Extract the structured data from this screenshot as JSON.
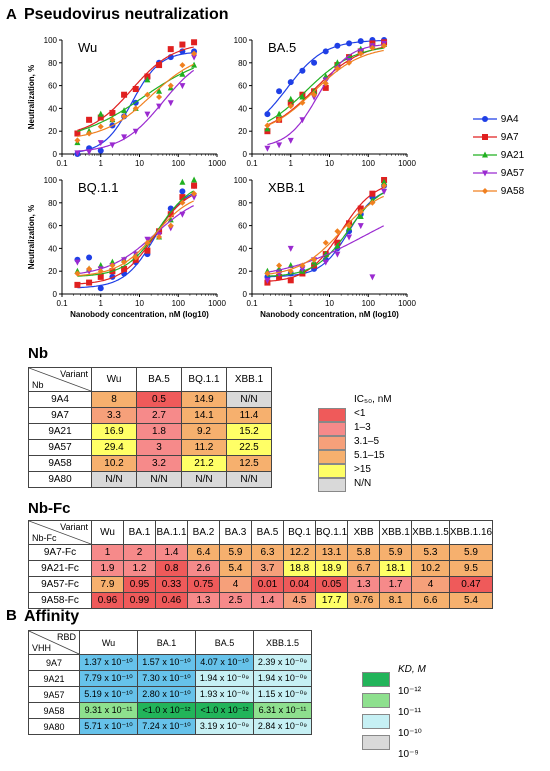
{
  "panel_a": "A",
  "panel_b": "B",
  "pseudo_title": "Pseudovirus neutralization",
  "nb_title": "Nb",
  "nbfc_title": "Nb-Fc",
  "affinity_title": "Affinity",
  "chart_data": [
    {
      "type": "scatter",
      "title": "Wu",
      "ylabel": "Neutralization, %",
      "xlabel": "",
      "xscale": "log",
      "xlim": [
        0.1,
        1000
      ],
      "ylim": [
        0,
        100
      ],
      "x_ticks": [
        "0.1",
        "1",
        "10",
        "100",
        "1000"
      ],
      "y_ticks": [
        "0",
        "20",
        "40",
        "60",
        "80",
        "100"
      ],
      "series": [
        {
          "name": "9A4",
          "color": "#1f3fe6",
          "x": [
            0.25,
            0.5,
            1,
            2,
            4,
            8,
            16,
            32,
            64,
            128,
            256
          ],
          "y": [
            0,
            5,
            3,
            25,
            33,
            45,
            67,
            80,
            85,
            90,
            90
          ]
        },
        {
          "name": "9A7",
          "color": "#e02020",
          "x": [
            0.25,
            0.5,
            1,
            2,
            4,
            8,
            16,
            32,
            64,
            128,
            256
          ],
          "y": [
            18,
            30,
            32,
            36,
            52,
            57,
            68,
            78,
            92,
            96,
            98
          ]
        },
        {
          "name": "9A21",
          "color": "#20b020",
          "x": [
            0.25,
            0.5,
            1,
            2,
            4,
            8,
            16,
            32,
            64,
            128,
            256
          ],
          "y": [
            10,
            20,
            35,
            30,
            38,
            40,
            65,
            55,
            58,
            70,
            78
          ]
        },
        {
          "name": "9A57",
          "color": "#9a2ad0",
          "x": [
            0.25,
            0.5,
            1,
            2,
            4,
            8,
            16,
            32,
            64,
            128,
            256
          ],
          "y": [
            1,
            2,
            10,
            8,
            15,
            20,
            35,
            42,
            45,
            60,
            85
          ]
        },
        {
          "name": "9A58",
          "color": "#f08020",
          "x": [
            0.25,
            0.5,
            1,
            2,
            4,
            8,
            16,
            32,
            64,
            128,
            256
          ],
          "y": [
            12,
            18,
            24,
            30,
            33,
            40,
            52,
            50,
            60,
            78,
            88
          ]
        }
      ]
    },
    {
      "type": "scatter",
      "title": "BA.5",
      "ylabel": "",
      "xlabel": "",
      "xscale": "log",
      "xlim": [
        0.1,
        1000
      ],
      "ylim": [
        0,
        100
      ],
      "x_ticks": [
        "0.1",
        "1",
        "10",
        "100",
        "1000"
      ],
      "y_ticks": [
        "0",
        "20",
        "40",
        "60",
        "80",
        "100"
      ],
      "series": [
        {
          "name": "9A4",
          "color": "#1f3fe6",
          "x": [
            0.25,
            0.5,
            1,
            2,
            4,
            8,
            16,
            32,
            64,
            128,
            256
          ],
          "y": [
            35,
            55,
            63,
            73,
            80,
            90,
            95,
            97,
            99,
            100,
            100
          ]
        },
        {
          "name": "9A7",
          "color": "#e02020",
          "x": [
            0.25,
            0.5,
            1,
            2,
            4,
            8,
            16,
            32,
            64,
            128,
            256
          ],
          "y": [
            20,
            30,
            45,
            52,
            55,
            58,
            78,
            85,
            90,
            97,
            98
          ]
        },
        {
          "name": "9A21",
          "color": "#20b020",
          "x": [
            0.25,
            0.5,
            1,
            2,
            4,
            8,
            16,
            32,
            64,
            128,
            256
          ],
          "y": [
            22,
            35,
            48,
            50,
            55,
            68,
            80,
            85,
            92,
            95,
            96
          ]
        },
        {
          "name": "9A57",
          "color": "#9a2ad0",
          "x": [
            0.25,
            0.5,
            1,
            2,
            4,
            8,
            16,
            32,
            64,
            128,
            256
          ],
          "y": [
            5,
            8,
            12,
            30,
            50,
            65,
            75,
            82,
            90,
            95,
            97
          ]
        },
        {
          "name": "9A58",
          "color": "#f08020",
          "x": [
            0.25,
            0.5,
            1,
            2,
            4,
            8,
            16,
            32,
            64,
            128,
            256
          ],
          "y": [
            25,
            30,
            42,
            45,
            52,
            62,
            75,
            80,
            88,
            93,
            95
          ]
        }
      ]
    },
    {
      "type": "scatter",
      "title": "BQ.1.1",
      "ylabel": "Neutralization, %",
      "xlabel": "Nanobody concentration, nM (log10)",
      "xscale": "log",
      "xlim": [
        0.1,
        1000
      ],
      "ylim": [
        0,
        100
      ],
      "x_ticks": [
        "0.1",
        "1",
        "10",
        "100",
        "1000"
      ],
      "y_ticks": [
        "0",
        "20",
        "40",
        "60",
        "80",
        "100"
      ],
      "series": [
        {
          "name": "9A4",
          "color": "#1f3fe6",
          "x": [
            0.25,
            0.5,
            1,
            2,
            4,
            8,
            16,
            32,
            64,
            128,
            256
          ],
          "y": [
            30,
            32,
            5,
            15,
            18,
            28,
            35,
            55,
            75,
            90,
            95
          ]
        },
        {
          "name": "9A7",
          "color": "#e02020",
          "x": [
            0.25,
            0.5,
            1,
            2,
            4,
            8,
            16,
            32,
            64,
            128,
            256
          ],
          "y": [
            8,
            10,
            15,
            20,
            22,
            30,
            38,
            55,
            70,
            85,
            95
          ]
        },
        {
          "name": "9A21",
          "color": "#20b020",
          "x": [
            0.25,
            0.5,
            1,
            2,
            4,
            8,
            16,
            32,
            64,
            128,
            256
          ],
          "y": [
            20,
            22,
            25,
            28,
            30,
            35,
            45,
            50,
            65,
            98,
            100
          ]
        },
        {
          "name": "9A57",
          "color": "#9a2ad0",
          "x": [
            0.25,
            0.5,
            1,
            2,
            4,
            8,
            16,
            32,
            64,
            128,
            256
          ],
          "y": [
            28,
            20,
            22,
            25,
            30,
            35,
            48,
            52,
            58,
            70,
            85
          ]
        },
        {
          "name": "9A58",
          "color": "#f08020",
          "x": [
            0.25,
            0.5,
            1,
            2,
            4,
            8,
            16,
            32,
            64,
            128,
            256
          ],
          "y": [
            18,
            22,
            20,
            25,
            28,
            32,
            45,
            50,
            60,
            80,
            88
          ]
        }
      ]
    },
    {
      "type": "scatter",
      "title": "XBB.1",
      "ylabel": "",
      "xlabel": "Nanobody concentration, nM (log10)",
      "xscale": "log",
      "xlim": [
        0.1,
        1000
      ],
      "ylim": [
        0,
        100
      ],
      "x_ticks": [
        "0.1",
        "1",
        "10",
        "100",
        "1000"
      ],
      "y_ticks": [
        "0",
        "20",
        "40",
        "60",
        "80",
        "100"
      ],
      "series": [
        {
          "name": "9A4",
          "color": "#1f3fe6",
          "x": [
            0.25,
            0.5,
            1,
            2,
            4,
            8,
            16,
            32,
            64,
            128,
            256
          ],
          "y": [
            15,
            20,
            18,
            20,
            22,
            30,
            40,
            55,
            70,
            85,
            95
          ]
        },
        {
          "name": "9A7",
          "color": "#e02020",
          "x": [
            0.25,
            0.5,
            1,
            2,
            4,
            8,
            16,
            32,
            64,
            128,
            256
          ],
          "y": [
            10,
            15,
            12,
            18,
            25,
            35,
            45,
            62,
            75,
            88,
            100
          ]
        },
        {
          "name": "9A21",
          "color": "#20b020",
          "x": [
            0.25,
            0.5,
            1,
            2,
            4,
            8,
            16,
            32,
            64,
            128,
            256
          ],
          "y": [
            20,
            22,
            25,
            20,
            28,
            35,
            42,
            58,
            68,
            82,
            98
          ]
        },
        {
          "name": "9A57",
          "color": "#9a2ad0",
          "x": [
            0.25,
            0.5,
            1,
            2,
            4,
            8,
            16,
            32,
            64,
            128,
            256
          ],
          "y": [
            12,
            18,
            40,
            22,
            30,
            28,
            35,
            50,
            60,
            15,
            90
          ]
        },
        {
          "name": "9A58",
          "color": "#f08020",
          "x": [
            0.25,
            0.5,
            1,
            2,
            4,
            8,
            16,
            32,
            64,
            128,
            256
          ],
          "y": [
            18,
            25,
            20,
            25,
            30,
            45,
            55,
            60,
            72,
            80,
            95
          ]
        }
      ]
    }
  ],
  "legend": [
    {
      "name": "9A4",
      "color": "#1f3fe6",
      "marker": "circle"
    },
    {
      "name": "9A7",
      "color": "#e02020",
      "marker": "square"
    },
    {
      "name": "9A21",
      "color": "#20b020",
      "marker": "triangle-up"
    },
    {
      "name": "9A57",
      "color": "#9a2ad0",
      "marker": "triangle-down"
    },
    {
      "name": "9A58",
      "color": "#f08020",
      "marker": "diamond"
    }
  ],
  "nb_table": {
    "corner_top": "Variant",
    "corner_bottom": "Nb",
    "columns": [
      "Wu",
      "BA.5",
      "BQ.1.1",
      "XBB.1"
    ],
    "rows": [
      {
        "name": "9A4",
        "values": [
          "8",
          "0.5",
          "14.9",
          "N/N"
        ],
        "colors": [
          "#f6b06e",
          "#ef5a5a",
          "#f6b06e",
          "#d9d9d9"
        ]
      },
      {
        "name": "9A7",
        "values": [
          "3.3",
          "2.7",
          "14.1",
          "11.4"
        ],
        "colors": [
          "#f6a07a",
          "#f68a8a",
          "#f6b06e",
          "#f6b06e"
        ]
      },
      {
        "name": "9A21",
        "values": [
          "16.9",
          "1.8",
          "9.2",
          "15.2"
        ],
        "colors": [
          "#ffff66",
          "#f68a8a",
          "#f6b06e",
          "#ffff66"
        ]
      },
      {
        "name": "9A57",
        "values": [
          "29.4",
          "3",
          "11.2",
          "22.5"
        ],
        "colors": [
          "#ffff66",
          "#f68a8a",
          "#f6b06e",
          "#ffff66"
        ]
      },
      {
        "name": "9A58",
        "values": [
          "10.2",
          "3.2",
          "21.2",
          "12.5"
        ],
        "colors": [
          "#f6b06e",
          "#f68a8a",
          "#ffff66",
          "#f6b06e"
        ]
      },
      {
        "name": "9A80",
        "values": [
          "N/N",
          "N/N",
          "N/N",
          "N/N"
        ],
        "colors": [
          "#d9d9d9",
          "#d9d9d9",
          "#d9d9d9",
          "#d9d9d9"
        ]
      }
    ]
  },
  "ic50_legend": {
    "title": "IC₅₀, nM",
    "items": [
      {
        "label": "<1",
        "color": "#ef5a5a"
      },
      {
        "label": "1–3",
        "color": "#f68a8a"
      },
      {
        "label": "3.1–5",
        "color": "#f6a07a"
      },
      {
        "label": "5.1–15",
        "color": "#f6b06e"
      },
      {
        "label": ">15",
        "color": "#ffff66"
      },
      {
        "label": "N/N",
        "color": "#d9d9d9"
      }
    ]
  },
  "nbfc_table": {
    "corner_top": "Variant",
    "corner_bottom": "Nb-Fc",
    "columns": [
      "Wu",
      "BA.1",
      "BA.1.1",
      "BA.2",
      "BA.3",
      "BA.5",
      "BQ.1",
      "BQ.1.1",
      "XBB",
      "XBB.1",
      "XBB.1.5",
      "XBB.1.16"
    ],
    "rows": [
      {
        "name": "9A7-Fc",
        "values": [
          "1",
          "2",
          "1.4",
          "6.4",
          "5.9",
          "6.3",
          "12.2",
          "13.1",
          "5.8",
          "5.9",
          "5.3",
          "5.9"
        ],
        "colors": [
          "#f68a8a",
          "#f68a8a",
          "#f68a8a",
          "#f6b06e",
          "#f6b06e",
          "#f6b06e",
          "#f6b06e",
          "#f6b06e",
          "#f6b06e",
          "#f6b06e",
          "#f6b06e",
          "#f6b06e"
        ]
      },
      {
        "name": "9A21-Fc",
        "values": [
          "1.9",
          "1.2",
          "0.8",
          "2.6",
          "5.4",
          "3.7",
          "18.8",
          "18.9",
          "6.7",
          "18.1",
          "10.2",
          "9.5"
        ],
        "colors": [
          "#f68a8a",
          "#f68a8a",
          "#ef5a5a",
          "#f68a8a",
          "#f6b06e",
          "#f6a07a",
          "#ffff66",
          "#ffff66",
          "#f6b06e",
          "#ffff66",
          "#f6b06e",
          "#f6b06e"
        ]
      },
      {
        "name": "9A57-Fc",
        "values": [
          "7.9",
          "0.95",
          "0.33",
          "0.75",
          "4",
          "0.01",
          "0.04",
          "0.05",
          "1.3",
          "1.7",
          "4",
          "0.47"
        ],
        "colors": [
          "#f6b06e",
          "#ef5a5a",
          "#ef5a5a",
          "#ef5a5a",
          "#f6a07a",
          "#ef5a5a",
          "#ef5a5a",
          "#ef5a5a",
          "#f68a8a",
          "#f68a8a",
          "#f6a07a",
          "#ef5a5a"
        ]
      },
      {
        "name": "9A58-Fc",
        "values": [
          "0.96",
          "0.99",
          "0.46",
          "1.3",
          "2.5",
          "1.4",
          "4.5",
          "17.7",
          "9.76",
          "8.1",
          "6.6",
          "5.4"
        ],
        "colors": [
          "#ef5a5a",
          "#ef5a5a",
          "#ef5a5a",
          "#f68a8a",
          "#f68a8a",
          "#f68a8a",
          "#f6a07a",
          "#ffff66",
          "#f6b06e",
          "#f6b06e",
          "#f6b06e",
          "#f6b06e"
        ]
      }
    ]
  },
  "affinity_table": {
    "corner_top": "RBD",
    "corner_bottom": "VHH",
    "columns": [
      "Wu",
      "BA.1",
      "BA.5",
      "XBB.1.5"
    ],
    "rows": [
      {
        "name": "9A7",
        "values": [
          "1.37 x 10⁻¹⁰",
          "1.57 x 10⁻¹⁰",
          "4.07 x 10⁻¹⁰",
          "2.39 x 10⁻⁰⁹"
        ],
        "colors": [
          "#66c2ea",
          "#66c2ea",
          "#66c2ea",
          "#c6f0f4"
        ]
      },
      {
        "name": "9A21",
        "values": [
          "7.79 x 10⁻¹⁰",
          "7.30 x 10⁻¹⁰",
          "1.94 x 10⁻⁰⁹",
          "1.94 x 10⁻⁰⁹"
        ],
        "colors": [
          "#66c2ea",
          "#66c2ea",
          "#c6f0f4",
          "#c6f0f4"
        ]
      },
      {
        "name": "9A57",
        "values": [
          "5.19 x 10⁻¹⁰",
          "2.80 x 10⁻¹⁰",
          "1.93 x 10⁻⁰⁹",
          "1.15 x 10⁻⁰⁹"
        ],
        "colors": [
          "#66c2ea",
          "#66c2ea",
          "#c6f0f4",
          "#c6f0f4"
        ]
      },
      {
        "name": "9A58",
        "values": [
          "9.31 x 10⁻¹¹",
          "<1.0 x 10⁻¹²",
          "<1.0 x 10⁻¹²",
          "6.31 x 10⁻¹¹"
        ],
        "colors": [
          "#8ee08e",
          "#22b45a",
          "#22b45a",
          "#8ee08e"
        ]
      },
      {
        "name": "9A80",
        "values": [
          "5.71 x 10⁻¹⁰",
          "7.24 x 10⁻¹⁰",
          "3.19 x 10⁻⁰⁹",
          "2.84 x 10⁻⁰⁹"
        ],
        "colors": [
          "#66c2ea",
          "#66c2ea",
          "#c6f0f4",
          "#c6f0f4"
        ]
      }
    ]
  },
  "kd_legend": {
    "title": "KD, M",
    "items": [
      {
        "label": "10⁻¹²",
        "color": "#22b45a"
      },
      {
        "label": "10⁻¹¹",
        "color": "#8ee08e"
      },
      {
        "label": "10⁻¹⁰",
        "color": "#c6f0f4"
      },
      {
        "label": "10⁻⁹",
        "color": "#d9d9d9"
      }
    ]
  }
}
